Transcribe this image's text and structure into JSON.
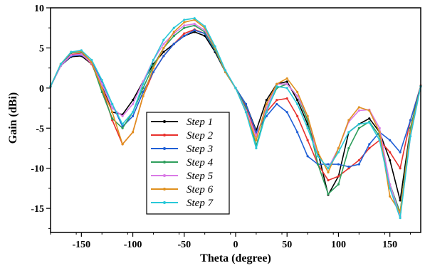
{
  "chart_data": {
    "type": "line",
    "xlabel": "Theta (degree)",
    "ylabel": "Gain (dBi)",
    "xlim": [
      -180,
      180
    ],
    "ylim": [
      -18,
      10
    ],
    "xticks": [
      -150,
      -100,
      -50,
      0,
      50,
      100,
      150
    ],
    "yticks": [
      10,
      5,
      0,
      -5,
      -10,
      -15
    ],
    "legend_position": "center-left",
    "grid": false,
    "x": [
      -180,
      -170,
      -160,
      -150,
      -140,
      -130,
      -120,
      -110,
      -100,
      -90,
      -80,
      -70,
      -60,
      -50,
      -40,
      -30,
      -20,
      -10,
      0,
      10,
      20,
      30,
      40,
      50,
      60,
      70,
      80,
      90,
      100,
      110,
      120,
      130,
      140,
      150,
      160,
      170,
      180
    ],
    "series": [
      {
        "name": "Step 1",
        "color": "#000000",
        "values": [
          0.2,
          2.8,
          3.9,
          4.0,
          3.0,
          0.5,
          -3.0,
          -3.3,
          -1.5,
          0.8,
          3.0,
          4.5,
          5.5,
          6.5,
          7.0,
          6.5,
          4.5,
          2.0,
          0.0,
          -2.0,
          -5.3,
          -1.5,
          0.5,
          0.8,
          -1.5,
          -4.5,
          -8.0,
          -13.3,
          -11.0,
          -5.5,
          -4.5,
          -3.8,
          -5.5,
          -9.0,
          -14.0,
          -5.0,
          0.3
        ]
      },
      {
        "name": "Step 2",
        "color": "#e8302c",
        "values": [
          0.2,
          2.9,
          4.2,
          4.3,
          3.0,
          0.0,
          -4.0,
          -7.0,
          -5.5,
          -1.0,
          2.0,
          4.0,
          5.5,
          6.8,
          7.3,
          6.8,
          4.8,
          2.0,
          0.0,
          -2.2,
          -5.8,
          -3.0,
          -1.5,
          -1.3,
          -3.5,
          -6.5,
          -9.5,
          -11.5,
          -11.0,
          -10.0,
          -9.0,
          -7.5,
          -6.5,
          -8.0,
          -10.0,
          -4.0,
          0.3
        ]
      },
      {
        "name": "Step 3",
        "color": "#1f5fd6",
        "values": [
          0.2,
          2.8,
          4.0,
          4.1,
          3.3,
          0.8,
          -2.0,
          -4.8,
          -3.5,
          -0.5,
          2.0,
          4.0,
          5.5,
          6.5,
          7.2,
          6.8,
          4.7,
          2.0,
          0.0,
          -2.0,
          -5.5,
          -3.5,
          -2.0,
          -3.0,
          -5.5,
          -8.5,
          -9.5,
          -9.5,
          -9.5,
          -9.8,
          -9.5,
          -7.0,
          -5.5,
          -6.5,
          -8.0,
          -4.0,
          0.2
        ]
      },
      {
        "name": "Step 4",
        "color": "#2e9e5c",
        "values": [
          0.2,
          3.0,
          4.4,
          4.5,
          3.2,
          -0.5,
          -3.8,
          -5.0,
          -3.0,
          0.0,
          2.8,
          5.0,
          6.5,
          7.5,
          7.8,
          7.0,
          4.8,
          2.0,
          0.0,
          -2.5,
          -7.2,
          -2.8,
          0.0,
          0.5,
          -1.0,
          -4.0,
          -9.5,
          -13.2,
          -12.0,
          -7.5,
          -5.0,
          -4.2,
          -6.0,
          -12.0,
          -15.5,
          -5.0,
          0.2
        ]
      },
      {
        "name": "Step 5",
        "color": "#d97ae6",
        "values": [
          0.2,
          2.8,
          4.1,
          4.2,
          3.1,
          0.5,
          -2.5,
          -3.5,
          -2.0,
          0.8,
          3.5,
          5.5,
          6.8,
          7.8,
          8.0,
          7.2,
          5.0,
          2.2,
          0.0,
          -2.8,
          -6.0,
          -2.5,
          0.5,
          0.5,
          -1.0,
          -3.5,
          -8.5,
          -10.0,
          -7.5,
          -4.2,
          -2.8,
          -2.7,
          -5.0,
          -12.0,
          -16.0,
          -6.0,
          0.2
        ]
      },
      {
        "name": "Step 6",
        "color": "#e0901e",
        "values": [
          0.2,
          3.0,
          4.5,
          4.6,
          3.2,
          0.0,
          -3.0,
          -7.0,
          -5.5,
          -1.0,
          2.5,
          5.0,
          7.0,
          8.2,
          8.5,
          7.5,
          5.0,
          2.0,
          0.0,
          -3.0,
          -6.5,
          -2.0,
          0.5,
          1.2,
          -0.5,
          -3.5,
          -8.0,
          -10.5,
          -7.5,
          -4.0,
          -2.4,
          -2.8,
          -5.5,
          -13.5,
          -15.5,
          -5.5,
          0.2
        ]
      },
      {
        "name": "Step 7",
        "color": "#29c8d8",
        "values": [
          0.2,
          3.0,
          4.5,
          4.7,
          3.5,
          1.0,
          -2.0,
          -4.5,
          -3.0,
          0.5,
          3.5,
          6.0,
          7.5,
          8.5,
          8.7,
          7.7,
          5.2,
          2.2,
          0.0,
          -3.0,
          -7.5,
          -3.0,
          0.2,
          0.0,
          -2.0,
          -5.0,
          -8.5,
          -10.0,
          -8.0,
          -5.5,
          -4.5,
          -4.3,
          -6.5,
          -12.5,
          -16.2,
          -6.0,
          0.2
        ]
      }
    ]
  }
}
